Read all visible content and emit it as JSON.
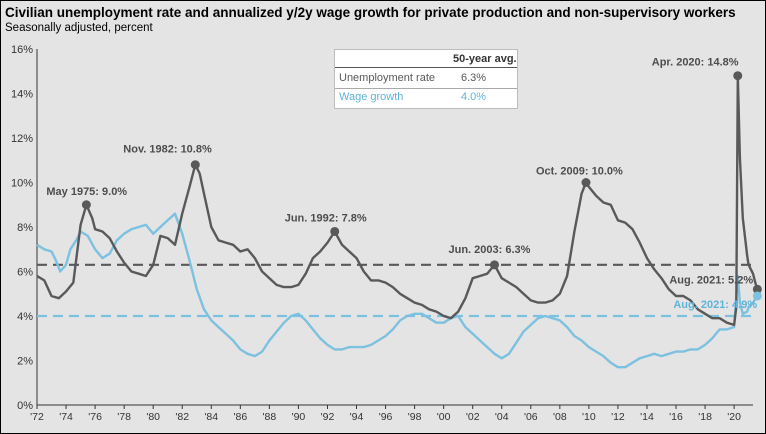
{
  "title": "Civilian unemployment rate and annualized y/2y wage growth for private production and non-supervisory workers",
  "subtitle": "Seasonally adjusted, percent",
  "avg_table": {
    "header": "50-year avg.",
    "rows": [
      {
        "name": "Unemployment rate",
        "value": "6.3%"
      },
      {
        "name": "Wage growth",
        "value": "4.0%"
      }
    ]
  },
  "colors": {
    "unemployment": "#595959",
    "wage": "#7cc1e0",
    "wage_label": "#5fb3d9",
    "background": "#e4e4e4"
  },
  "chart_data": {
    "type": "line",
    "ylim": [
      0,
      16
    ],
    "xlim": [
      1972,
      2021.3
    ],
    "y_ticks": [
      "0%",
      "2%",
      "4%",
      "6%",
      "8%",
      "10%",
      "12%",
      "14%",
      "16%"
    ],
    "x_ticks": [
      "'72",
      "'74",
      "'76",
      "'78",
      "'80",
      "'82",
      "'84",
      "'86",
      "'88",
      "'90",
      "'92",
      "'94",
      "'96",
      "'98",
      "'00",
      "'02",
      "'04",
      "'06",
      "'08",
      "'10",
      "'12",
      "'14",
      "'16",
      "'18",
      "'20"
    ],
    "series": [
      {
        "name": "Unemployment rate",
        "points": [
          [
            1972.0,
            5.8
          ],
          [
            1972.5,
            5.6
          ],
          [
            1973.0,
            4.9
          ],
          [
            1973.5,
            4.8
          ],
          [
            1974.0,
            5.1
          ],
          [
            1974.5,
            5.5
          ],
          [
            1975.0,
            8.1
          ],
          [
            1975.4,
            9.0
          ],
          [
            1975.8,
            8.4
          ],
          [
            1976.0,
            7.9
          ],
          [
            1976.5,
            7.8
          ],
          [
            1977.0,
            7.5
          ],
          [
            1977.5,
            6.9
          ],
          [
            1978.0,
            6.4
          ],
          [
            1978.5,
            6.0
          ],
          [
            1979.0,
            5.9
          ],
          [
            1979.5,
            5.8
          ],
          [
            1980.0,
            6.3
          ],
          [
            1980.5,
            7.6
          ],
          [
            1981.0,
            7.5
          ],
          [
            1981.5,
            7.2
          ],
          [
            1982.0,
            8.6
          ],
          [
            1982.5,
            9.8
          ],
          [
            1982.9,
            10.8
          ],
          [
            1983.2,
            10.4
          ],
          [
            1983.5,
            9.5
          ],
          [
            1984.0,
            8.0
          ],
          [
            1984.5,
            7.4
          ],
          [
            1985.0,
            7.3
          ],
          [
            1985.5,
            7.2
          ],
          [
            1986.0,
            6.9
          ],
          [
            1986.5,
            7.0
          ],
          [
            1987.0,
            6.6
          ],
          [
            1987.5,
            6.0
          ],
          [
            1988.0,
            5.7
          ],
          [
            1988.5,
            5.4
          ],
          [
            1989.0,
            5.3
          ],
          [
            1989.5,
            5.3
          ],
          [
            1990.0,
            5.4
          ],
          [
            1990.5,
            5.9
          ],
          [
            1991.0,
            6.6
          ],
          [
            1991.5,
            6.9
          ],
          [
            1992.0,
            7.3
          ],
          [
            1992.5,
            7.8
          ],
          [
            1993.0,
            7.2
          ],
          [
            1993.5,
            6.9
          ],
          [
            1994.0,
            6.6
          ],
          [
            1994.5,
            6.0
          ],
          [
            1995.0,
            5.6
          ],
          [
            1995.5,
            5.6
          ],
          [
            1996.0,
            5.5
          ],
          [
            1996.5,
            5.3
          ],
          [
            1997.0,
            5.0
          ],
          [
            1997.5,
            4.8
          ],
          [
            1998.0,
            4.6
          ],
          [
            1998.5,
            4.5
          ],
          [
            1999.0,
            4.3
          ],
          [
            1999.5,
            4.2
          ],
          [
            2000.0,
            4.0
          ],
          [
            2000.5,
            3.9
          ],
          [
            2001.0,
            4.2
          ],
          [
            2001.5,
            4.8
          ],
          [
            2002.0,
            5.7
          ],
          [
            2002.5,
            5.8
          ],
          [
            2003.0,
            5.9
          ],
          [
            2003.5,
            6.3
          ],
          [
            2004.0,
            5.7
          ],
          [
            2004.5,
            5.5
          ],
          [
            2005.0,
            5.3
          ],
          [
            2005.5,
            5.0
          ],
          [
            2006.0,
            4.7
          ],
          [
            2006.5,
            4.6
          ],
          [
            2007.0,
            4.6
          ],
          [
            2007.5,
            4.7
          ],
          [
            2008.0,
            5.0
          ],
          [
            2008.5,
            5.8
          ],
          [
            2009.0,
            7.8
          ],
          [
            2009.5,
            9.5
          ],
          [
            2009.8,
            10.0
          ],
          [
            2010.0,
            9.8
          ],
          [
            2010.5,
            9.4
          ],
          [
            2011.0,
            9.1
          ],
          [
            2011.5,
            9.0
          ],
          [
            2012.0,
            8.3
          ],
          [
            2012.5,
            8.2
          ],
          [
            2013.0,
            7.9
          ],
          [
            2013.5,
            7.3
          ],
          [
            2014.0,
            6.6
          ],
          [
            2014.5,
            6.1
          ],
          [
            2015.0,
            5.7
          ],
          [
            2015.5,
            5.2
          ],
          [
            2016.0,
            4.9
          ],
          [
            2016.5,
            4.9
          ],
          [
            2017.0,
            4.7
          ],
          [
            2017.5,
            4.3
          ],
          [
            2018.0,
            4.1
          ],
          [
            2018.5,
            3.9
          ],
          [
            2019.0,
            3.9
          ],
          [
            2019.5,
            3.7
          ],
          [
            2020.0,
            3.6
          ],
          [
            2020.15,
            4.4
          ],
          [
            2020.25,
            14.8
          ],
          [
            2020.4,
            11.1
          ],
          [
            2020.6,
            8.4
          ],
          [
            2020.9,
            6.7
          ],
          [
            2021.0,
            6.3
          ],
          [
            2021.3,
            5.9
          ],
          [
            2021.5,
            5.4
          ],
          [
            2021.6,
            5.2
          ]
        ]
      },
      {
        "name": "Wage growth",
        "points": [
          [
            1972.0,
            7.2
          ],
          [
            1972.5,
            7.0
          ],
          [
            1973.0,
            6.9
          ],
          [
            1973.3,
            6.5
          ],
          [
            1973.6,
            6.0
          ],
          [
            1974.0,
            6.3
          ],
          [
            1974.3,
            7.0
          ],
          [
            1974.7,
            7.4
          ],
          [
            1975.0,
            7.8
          ],
          [
            1975.5,
            7.6
          ],
          [
            1976.0,
            7.0
          ],
          [
            1976.5,
            6.6
          ],
          [
            1977.0,
            6.8
          ],
          [
            1977.5,
            7.4
          ],
          [
            1978.0,
            7.7
          ],
          [
            1978.5,
            7.9
          ],
          [
            1979.0,
            8.0
          ],
          [
            1979.5,
            8.1
          ],
          [
            1980.0,
            7.7
          ],
          [
            1980.5,
            8.0
          ],
          [
            1981.0,
            8.3
          ],
          [
            1981.5,
            8.6
          ],
          [
            1982.0,
            7.7
          ],
          [
            1982.5,
            6.5
          ],
          [
            1983.0,
            5.2
          ],
          [
            1983.5,
            4.3
          ],
          [
            1984.0,
            3.8
          ],
          [
            1984.5,
            3.5
          ],
          [
            1985.0,
            3.2
          ],
          [
            1985.5,
            2.9
          ],
          [
            1986.0,
            2.5
          ],
          [
            1986.5,
            2.3
          ],
          [
            1987.0,
            2.2
          ],
          [
            1987.5,
            2.4
          ],
          [
            1988.0,
            2.9
          ],
          [
            1988.5,
            3.3
          ],
          [
            1989.0,
            3.7
          ],
          [
            1989.5,
            4.0
          ],
          [
            1990.0,
            4.1
          ],
          [
            1990.5,
            3.8
          ],
          [
            1991.0,
            3.4
          ],
          [
            1991.5,
            3.0
          ],
          [
            1992.0,
            2.7
          ],
          [
            1992.5,
            2.5
          ],
          [
            1993.0,
            2.5
          ],
          [
            1993.5,
            2.6
          ],
          [
            1994.0,
            2.6
          ],
          [
            1994.5,
            2.6
          ],
          [
            1995.0,
            2.7
          ],
          [
            1995.5,
            2.9
          ],
          [
            1996.0,
            3.1
          ],
          [
            1996.5,
            3.4
          ],
          [
            1997.0,
            3.8
          ],
          [
            1997.5,
            4.0
          ],
          [
            1998.0,
            4.1
          ],
          [
            1998.5,
            4.1
          ],
          [
            1999.0,
            3.9
          ],
          [
            1999.5,
            3.7
          ],
          [
            2000.0,
            3.7
          ],
          [
            2000.5,
            3.9
          ],
          [
            2001.0,
            4.0
          ],
          [
            2001.5,
            3.5
          ],
          [
            2002.0,
            3.2
          ],
          [
            2002.5,
            2.9
          ],
          [
            2003.0,
            2.6
          ],
          [
            2003.5,
            2.3
          ],
          [
            2004.0,
            2.1
          ],
          [
            2004.5,
            2.3
          ],
          [
            2005.0,
            2.8
          ],
          [
            2005.5,
            3.3
          ],
          [
            2006.0,
            3.6
          ],
          [
            2006.5,
            3.9
          ],
          [
            2007.0,
            4.0
          ],
          [
            2007.5,
            3.9
          ],
          [
            2008.0,
            3.8
          ],
          [
            2008.5,
            3.5
          ],
          [
            2009.0,
            3.1
          ],
          [
            2009.5,
            2.9
          ],
          [
            2010.0,
            2.6
          ],
          [
            2010.5,
            2.4
          ],
          [
            2011.0,
            2.2
          ],
          [
            2011.5,
            1.9
          ],
          [
            2012.0,
            1.7
          ],
          [
            2012.5,
            1.7
          ],
          [
            2013.0,
            1.9
          ],
          [
            2013.5,
            2.1
          ],
          [
            2014.0,
            2.2
          ],
          [
            2014.5,
            2.3
          ],
          [
            2015.0,
            2.2
          ],
          [
            2015.5,
            2.3
          ],
          [
            2016.0,
            2.4
          ],
          [
            2016.5,
            2.4
          ],
          [
            2017.0,
            2.5
          ],
          [
            2017.5,
            2.5
          ],
          [
            2018.0,
            2.7
          ],
          [
            2018.5,
            3.0
          ],
          [
            2019.0,
            3.4
          ],
          [
            2019.5,
            3.4
          ],
          [
            2020.0,
            3.5
          ],
          [
            2020.25,
            5.8
          ],
          [
            2020.4,
            4.6
          ],
          [
            2020.6,
            4.1
          ],
          [
            2020.9,
            4.2
          ],
          [
            2021.0,
            4.4
          ],
          [
            2021.3,
            4.6
          ],
          [
            2021.6,
            4.9
          ]
        ]
      }
    ],
    "reference_lines": [
      {
        "name": "Unemployment rate",
        "value": 6.3
      },
      {
        "name": "Wage growth",
        "value": 4.0
      }
    ],
    "annotations": [
      {
        "text": "May 1975: 9.0%",
        "x": 1975.4,
        "y": 9.0,
        "marker": true,
        "series": "Unemployment rate"
      },
      {
        "text": "Nov. 1982: 10.8%",
        "x": 1982.9,
        "y": 10.8,
        "marker": true,
        "series": "Unemployment rate"
      },
      {
        "text": "Jun. 1992: 7.8%",
        "x": 1992.5,
        "y": 7.8,
        "marker": true,
        "series": "Unemployment rate"
      },
      {
        "text": "Jun. 2003: 6.3%",
        "x": 2003.5,
        "y": 6.3,
        "marker": true,
        "series": "Unemployment rate"
      },
      {
        "text": "Oct. 2009: 10.0%",
        "x": 2009.8,
        "y": 10.0,
        "marker": true,
        "series": "Unemployment rate"
      },
      {
        "text": "Apr. 2020: 14.8%",
        "x": 2020.25,
        "y": 14.8,
        "marker": true,
        "series": "Unemployment rate"
      },
      {
        "text": "Aug. 2021: 5.2%",
        "x": 2021.6,
        "y": 5.2,
        "marker": true,
        "series": "Unemployment rate"
      },
      {
        "text": "Aug. 2021: 4.9%",
        "x": 2021.6,
        "y": 4.9,
        "marker": true,
        "series": "Wage growth"
      }
    ]
  }
}
